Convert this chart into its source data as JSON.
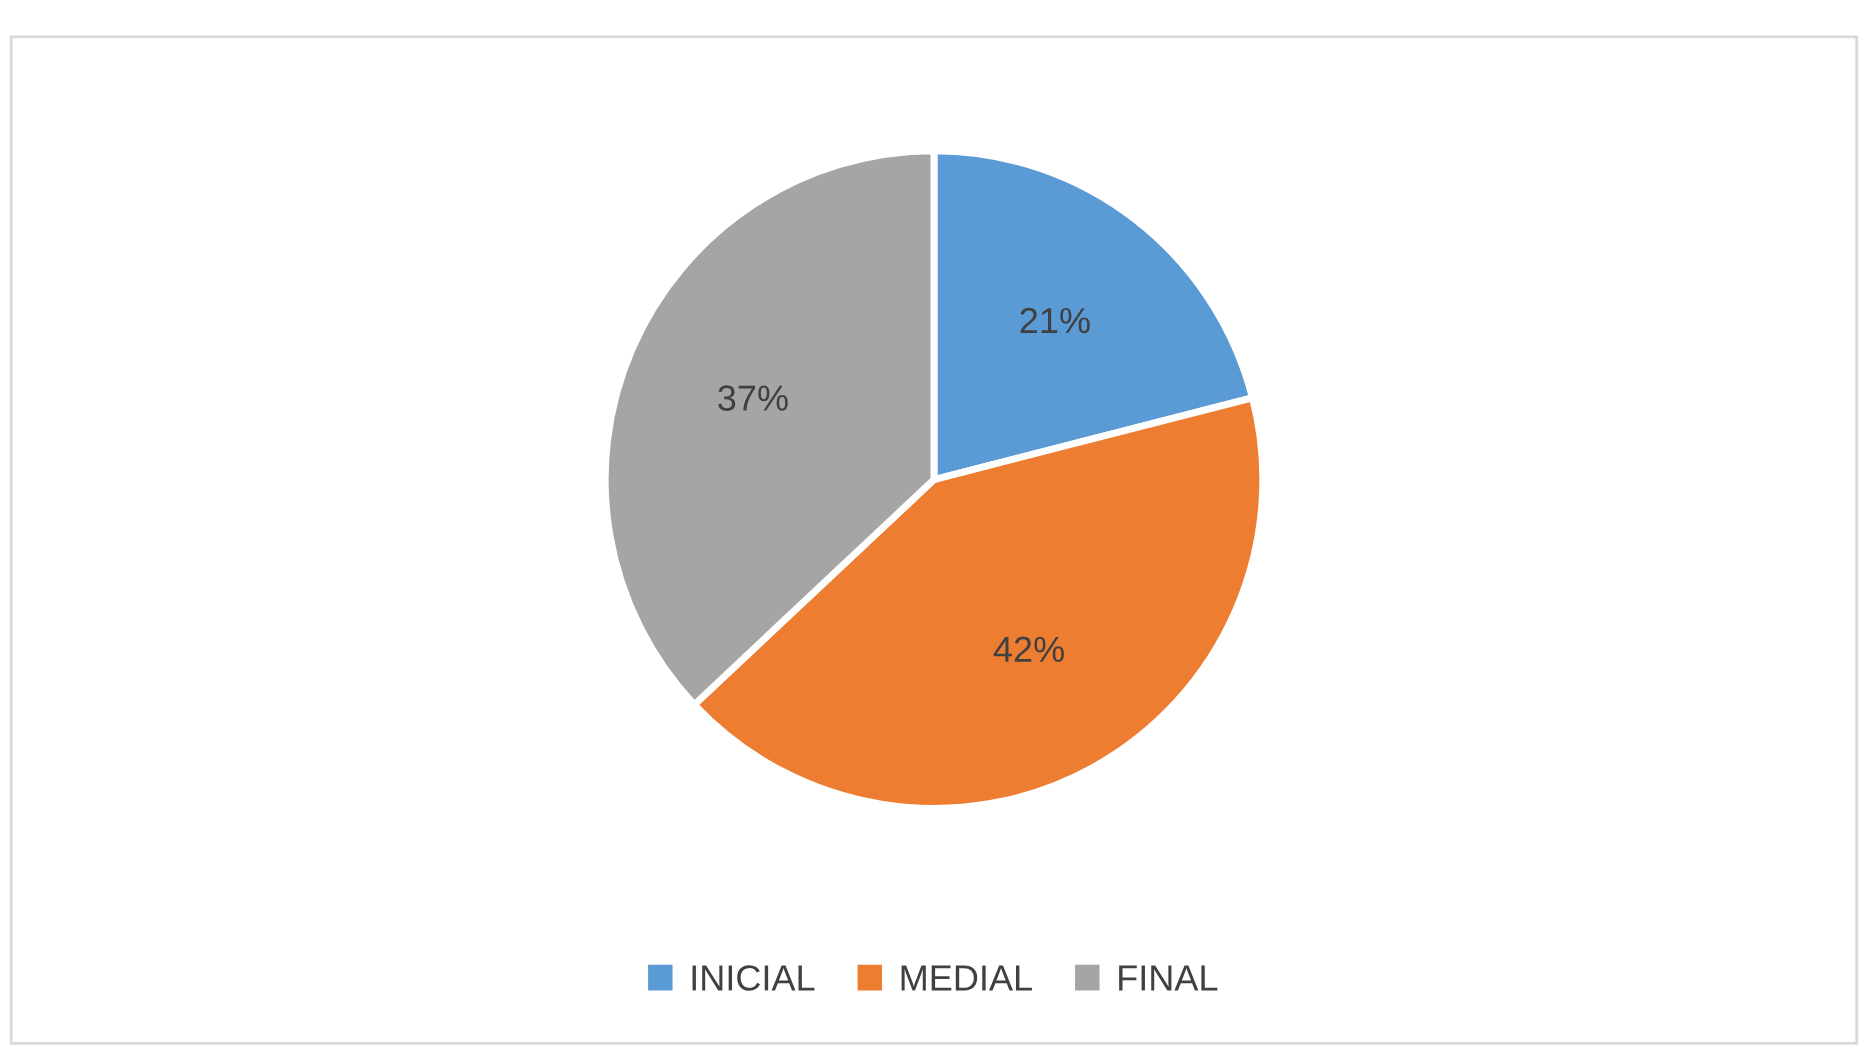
{
  "chart_data": {
    "type": "pie",
    "categories": [
      "INICIAL",
      "MEDIAL",
      "FINAL"
    ],
    "values": [
      21,
      42,
      37
    ],
    "colors": [
      "#5b9bd5",
      "#ed7d31",
      "#a5a5a5"
    ],
    "value_labels": [
      "21%",
      "42%",
      "37%"
    ],
    "legend": "bottom"
  }
}
